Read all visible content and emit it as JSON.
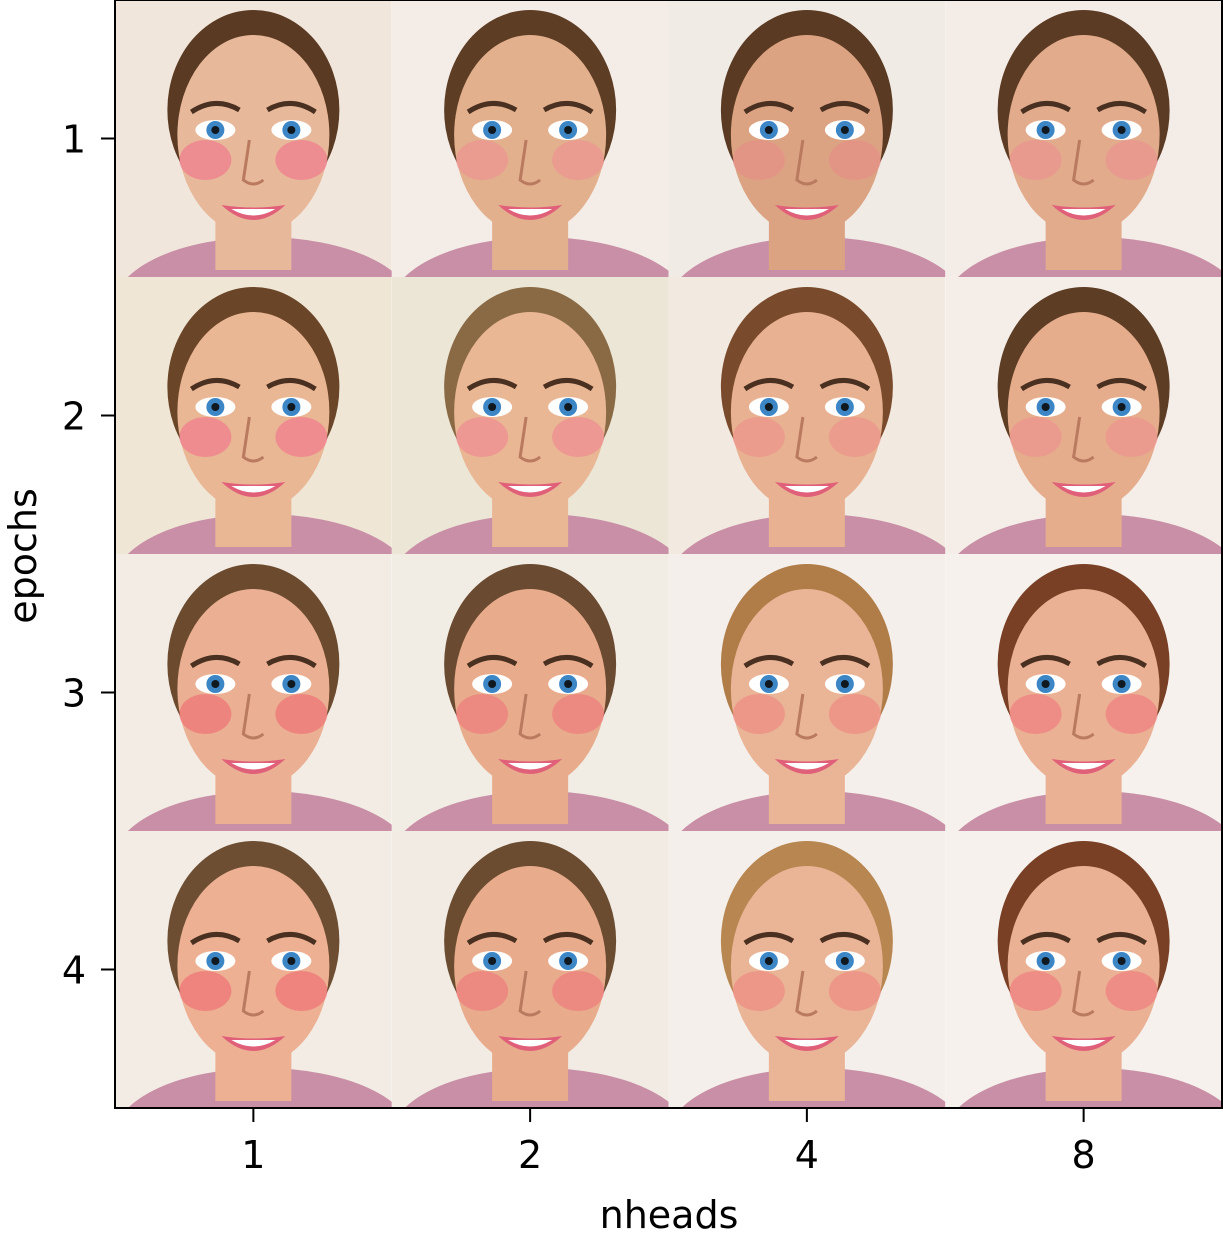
{
  "chart_data": {
    "type": "image-grid",
    "title": "",
    "xlabel": "nheads",
    "ylabel": "epochs",
    "x_ticks": [
      "1",
      "2",
      "4",
      "8"
    ],
    "y_ticks": [
      "1",
      "2",
      "3",
      "4"
    ],
    "cell_description": "generated face portrait (woman, blue eyes, smiling)",
    "cells": [
      [
        {
          "hair": "#5a3a22",
          "skin": "#e8b89a",
          "cheek": "#f06a8a",
          "bg": "#f1e6dc"
        },
        {
          "hair": "#5e3d25",
          "skin": "#e3b08e",
          "cheek": "#ee8c90",
          "bg": "#f4ece6"
        },
        {
          "hair": "#5a3a22",
          "skin": "#dca383",
          "cheek": "#e98b86",
          "bg": "#f1ebe6"
        },
        {
          "hair": "#5c3b24",
          "skin": "#e2ab8c",
          "cheek": "#ee8c90",
          "bg": "#f4ece6"
        }
      ],
      [
        {
          "hair": "#6b4528",
          "skin": "#eab795",
          "cheek": "#f06a8a",
          "bg": "#efe6d6"
        },
        {
          "hair": "#8a6a45",
          "skin": "#eab795",
          "cheek": "#ef7f90",
          "bg": "#ece6d6"
        },
        {
          "hair": "#7a4a2c",
          "skin": "#e8b292",
          "cheek": "#ec8a86",
          "bg": "#f2e9e0"
        },
        {
          "hair": "#5e3d25",
          "skin": "#e6ad8d",
          "cheek": "#ee8c90",
          "bg": "#f5eee8"
        }
      ],
      [
        {
          "hair": "#6b4a2e",
          "skin": "#ebb093",
          "cheek": "#f0606e",
          "bg": "#f2ece4"
        },
        {
          "hair": "#6a4a30",
          "skin": "#e8ac8c",
          "cheek": "#ef6f7a",
          "bg": "#f2ede4"
        },
        {
          "hair": "#b07c48",
          "skin": "#eab496",
          "cheek": "#ee8080",
          "bg": "#f4efea"
        },
        {
          "hair": "#7a4026",
          "skin": "#ebb194",
          "cheek": "#f07078",
          "bg": "#f6f1ec"
        }
      ],
      [
        {
          "hair": "#6e4e32",
          "skin": "#edb093",
          "cheek": "#f0606e",
          "bg": "#f2ece4"
        },
        {
          "hair": "#6c4c30",
          "skin": "#e8ac8c",
          "cheek": "#ef6f7a",
          "bg": "#f1ebe3"
        },
        {
          "hair": "#b88650",
          "skin": "#eab496",
          "cheek": "#ee8080",
          "bg": "#f4efea"
        },
        {
          "hair": "#7a4026",
          "skin": "#ebb194",
          "cheek": "#f07078",
          "bg": "#f6f1ec"
        }
      ]
    ],
    "grid": false,
    "legend": "none"
  }
}
